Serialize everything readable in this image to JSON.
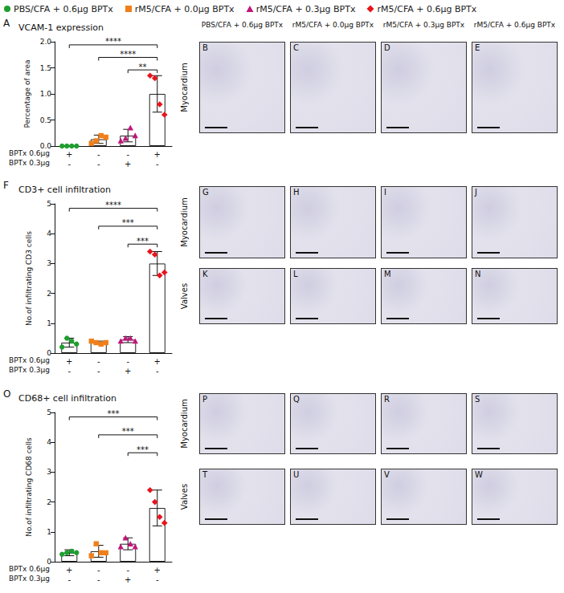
{
  "chart_data": [
    {
      "type": "bar",
      "letter": "A",
      "title": "VCAM-1 expression",
      "y_label": "Percentage of area",
      "legend": "top",
      "grid": false,
      "categories": [
        null,
        null,
        null,
        null
      ],
      "values": [
        0.0,
        0.13,
        0.2,
        1.0
      ],
      "error": [
        0.0,
        0.08,
        0.12,
        0.35
      ],
      "ylim": [
        0,
        2
      ],
      "yticks": [
        {
          "value": 0,
          "label": "0.0"
        },
        0.5,
        {
          "value": 1,
          "label": "1.0"
        },
        1.5,
        {
          "value": 2,
          "label": "2.0"
        }
      ],
      "treatment_rows": [
        {
          "label": "BPTx 0.6µg",
          "cells": [
            "+",
            "-",
            "-",
            "+"
          ]
        },
        {
          "label": "BPTx 0.3µg",
          "cells": [
            "-",
            "-",
            "+",
            "-"
          ]
        }
      ],
      "series": [
        {
          "name": "PBS/CFA + 0.6µg BPTx",
          "color": "#1e9e2f",
          "marker": "circle",
          "points": [
            0.0,
            0.0,
            0.0,
            0.0
          ]
        },
        {
          "name": "rM5/CFA + 0.0µg BPTx",
          "color": "#f07f1a",
          "marker": "square",
          "points": [
            0.05,
            0.1,
            0.2,
            0.17
          ]
        },
        {
          "name": "rM5/CFA + 0.3µg BPTx",
          "color": "#c0157a",
          "marker": "triangle",
          "points": [
            0.1,
            0.15,
            0.35,
            0.2
          ]
        },
        {
          "name": "rM5/CFA + 0.6µg BPTx",
          "color": "#e8141b",
          "marker": "diamond",
          "points": [
            1.35,
            1.3,
            0.8,
            0.6
          ]
        }
      ],
      "significance": [
        {
          "groups": [
            0,
            3
          ],
          "label": "****"
        },
        {
          "groups": [
            1,
            3
          ],
          "label": "****"
        },
        {
          "groups": [
            2,
            3
          ],
          "label": "**"
        }
      ]
    },
    {
      "type": "bar",
      "letter": "F",
      "title": "CD3+ cell infiltration",
      "y_label": "No.of infiltrating CD3 cells",
      "grid": false,
      "categories": [
        null,
        null,
        null,
        null
      ],
      "values": [
        0.35,
        0.35,
        0.45,
        3.0
      ],
      "error": [
        0.15,
        0.05,
        0.1,
        0.4
      ],
      "ylim": [
        0,
        5
      ],
      "yticks": [
        0,
        1,
        2,
        3,
        4,
        5
      ],
      "treatment_rows": [
        {
          "label": "BPTx 0.6µg",
          "cells": [
            "+",
            "-",
            "-",
            "+"
          ]
        },
        {
          "label": "BPTx 0.3µg",
          "cells": [
            "-",
            "-",
            "+",
            "-"
          ]
        }
      ],
      "series": [
        {
          "name": "PBS/CFA + 0.6µg BPTx",
          "color": "#1e9e2f",
          "marker": "circle",
          "points": [
            0.2,
            0.5,
            0.4,
            0.3
          ]
        },
        {
          "name": "rM5/CFA + 0.0µg BPTx",
          "color": "#f07f1a",
          "marker": "square",
          "points": [
            0.4,
            0.35,
            0.3,
            0.35
          ]
        },
        {
          "name": "rM5/CFA + 0.3µg BPTx",
          "color": "#c0157a",
          "marker": "triangle",
          "points": [
            0.4,
            0.5,
            0.5,
            0.4
          ]
        },
        {
          "name": "rM5/CFA + 0.6µg BPTx",
          "color": "#e8141b",
          "marker": "diamond",
          "points": [
            3.4,
            3.3,
            2.6,
            2.7
          ]
        }
      ],
      "significance": [
        {
          "groups": [
            0,
            3
          ],
          "label": "****"
        },
        {
          "groups": [
            1,
            3
          ],
          "label": "***"
        },
        {
          "groups": [
            2,
            3
          ],
          "label": "***"
        }
      ]
    },
    {
      "type": "bar",
      "letter": "O",
      "title": "CD68+ cell infiltration",
      "y_label": "No.of infiltrating CD68 cells",
      "grid": false,
      "categories": [
        null,
        null,
        null,
        null
      ],
      "values": [
        0.3,
        0.35,
        0.6,
        1.8
      ],
      "error": [
        0.1,
        0.2,
        0.2,
        0.6
      ],
      "ylim": [
        0,
        5
      ],
      "yticks": [
        0,
        1,
        2,
        3,
        4,
        5
      ],
      "treatment_rows": [
        {
          "label": "BPTx 0.6µg",
          "cells": [
            "+",
            "-",
            "-",
            "+"
          ]
        },
        {
          "label": "BPTx 0.3µg",
          "cells": [
            "-",
            "-",
            "+",
            "-"
          ]
        }
      ],
      "series": [
        {
          "name": "PBS/CFA + 0.6µg BPTx",
          "color": "#1e9e2f",
          "marker": "circle",
          "points": [
            0.25,
            0.3,
            0.35,
            0.3
          ]
        },
        {
          "name": "rM5/CFA + 0.0µg BPTx",
          "color": "#f07f1a",
          "marker": "square",
          "points": [
            0.2,
            0.6,
            0.3,
            0.3
          ]
        },
        {
          "name": "rM5/CFA + 0.3µg BPTx",
          "color": "#c0157a",
          "marker": "triangle",
          "points": [
            0.5,
            0.8,
            0.6,
            0.5
          ]
        },
        {
          "name": "rM5/CFA + 0.6µg BPTx",
          "color": "#e8141b",
          "marker": "diamond",
          "points": [
            2.4,
            2.0,
            1.5,
            1.3
          ]
        }
      ],
      "significance": [
        {
          "groups": [
            0,
            3
          ],
          "label": "***"
        },
        {
          "groups": [
            1,
            3
          ],
          "label": "***"
        },
        {
          "groups": [
            2,
            3
          ],
          "label": "***"
        }
      ]
    }
  ],
  "micrographs": [
    {
      "column_titles": [
        "PBS/CFA + 0.6µg BPTx",
        "rM5/CFA + 0.0µg BPTx",
        "rM5/CFA + 0.3µg BPTx",
        "rM5/CFA + 0.6µg BPTx"
      ],
      "rows": [
        {
          "tissue": "Myocardium",
          "panels": [
            "B",
            "C",
            "D",
            "E"
          ]
        }
      ]
    },
    {
      "rows": [
        {
          "tissue": "Myocardium",
          "panels": [
            "G",
            "H",
            "I",
            "J"
          ]
        },
        {
          "tissue": "Valves",
          "panels": [
            "K",
            "L",
            "M",
            "N"
          ]
        }
      ]
    },
    {
      "rows": [
        {
          "tissue": "Myocardium",
          "panels": [
            "P",
            "Q",
            "R",
            "S"
          ]
        },
        {
          "tissue": "Valves",
          "panels": [
            "T",
            "U",
            "V",
            "W"
          ]
        }
      ]
    }
  ]
}
